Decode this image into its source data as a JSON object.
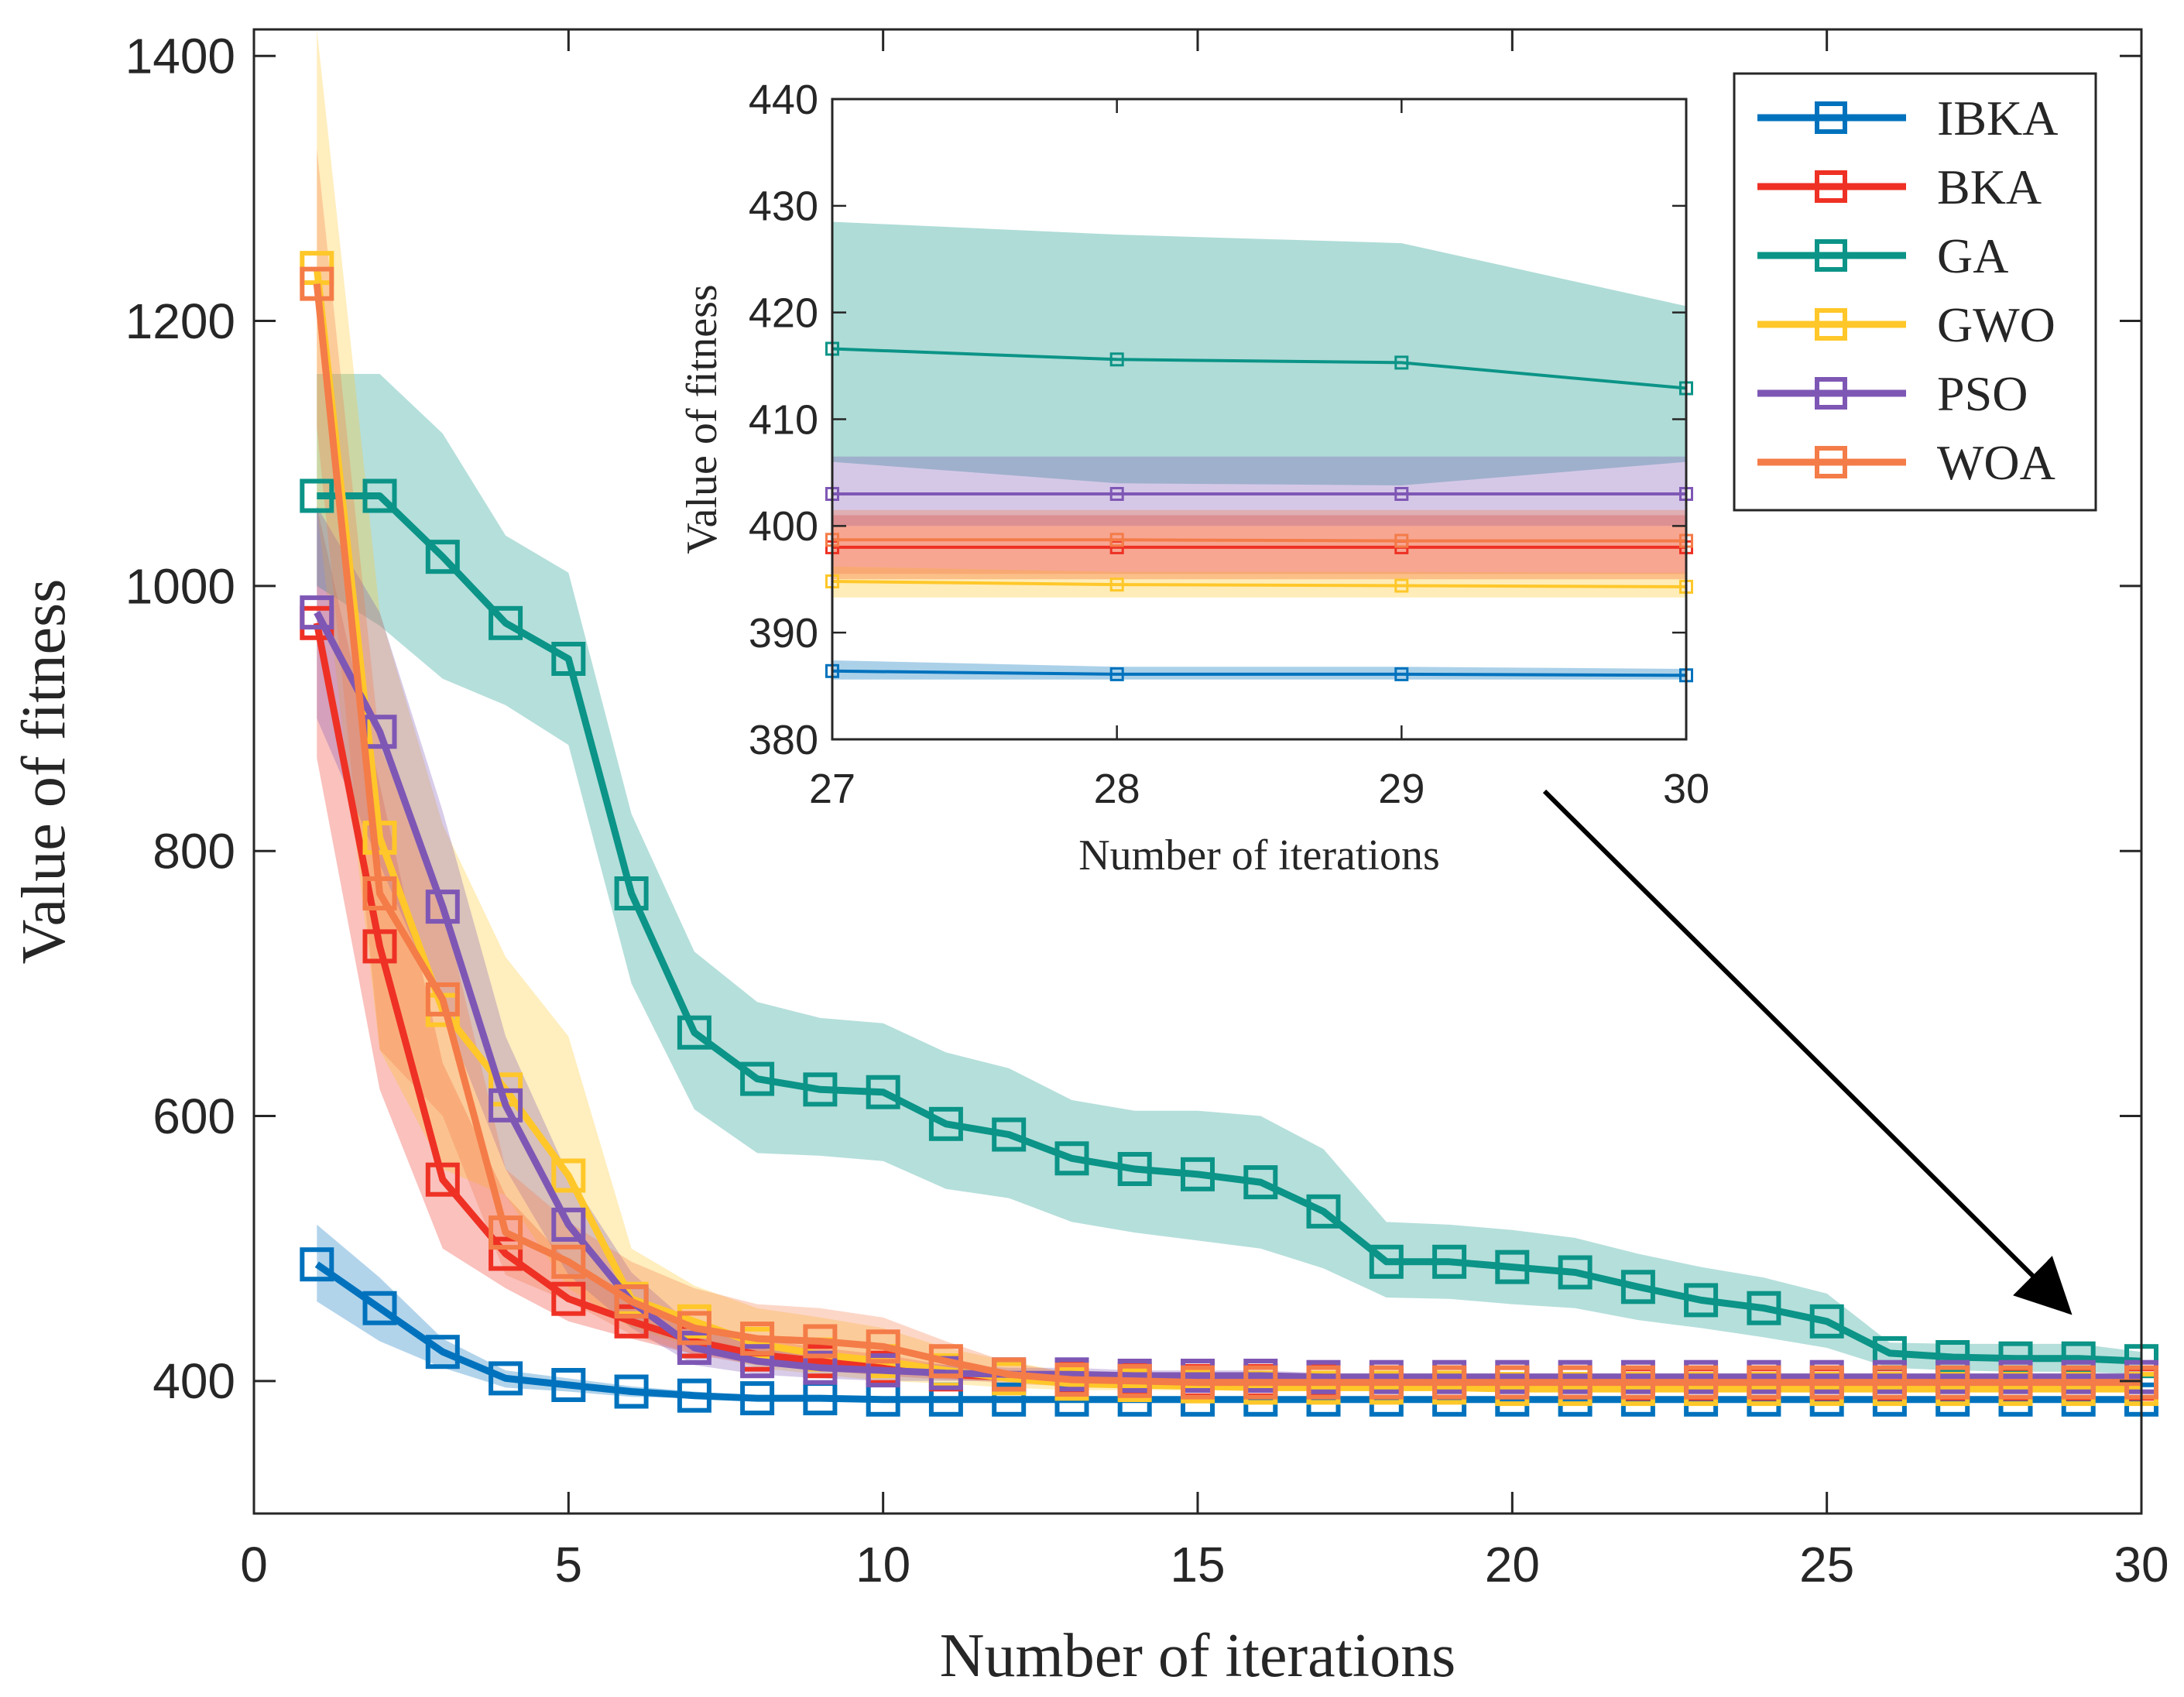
{
  "chart_data": {
    "type": "line",
    "xlabel": "Number of iterations",
    "ylabel": "Value of fitness",
    "xlim": [
      0,
      30
    ],
    "ylim": [
      300,
      1420
    ],
    "xticks": [
      0,
      5,
      10,
      15,
      20,
      25,
      30
    ],
    "yticks": [
      400,
      600,
      800,
      1000,
      1200,
      1400
    ],
    "legend_position": "top-right",
    "x": [
      1,
      2,
      3,
      4,
      5,
      6,
      7,
      8,
      9,
      10,
      11,
      12,
      13,
      14,
      15,
      16,
      17,
      18,
      19,
      20,
      21,
      22,
      23,
      24,
      25,
      26,
      27,
      28,
      29,
      30
    ],
    "series": [
      {
        "name": "IBKA",
        "color": "#0072BD",
        "values": [
          488,
          455,
          422,
          402,
          397,
          392,
          389,
          387,
          387,
          386,
          386,
          386,
          386,
          386,
          386,
          386,
          386,
          386,
          386,
          386,
          386,
          386,
          386,
          386,
          386,
          386,
          386,
          386,
          386,
          386
        ],
        "lower": [
          460,
          430,
          410,
          395,
          392,
          388,
          387,
          386,
          386,
          386,
          386,
          386,
          386,
          386,
          386,
          386,
          386,
          386,
          386,
          386,
          386,
          386,
          386,
          386,
          386,
          386,
          386,
          386,
          386,
          386
        ],
        "upper": [
          518,
          478,
          432,
          408,
          402,
          396,
          392,
          389,
          388,
          387,
          387,
          387,
          387,
          387,
          387,
          387,
          387,
          387,
          387,
          387,
          387,
          387,
          387,
          387,
          387,
          387,
          387,
          387,
          387,
          387
        ]
      },
      {
        "name": "BKA",
        "color": "#EE3124",
        "values": [
          972,
          728,
          552,
          496,
          462,
          445,
          430,
          420,
          415,
          410,
          405,
          403,
          402,
          401,
          400,
          400,
          400,
          399,
          399,
          399,
          399,
          398,
          398,
          398,
          398,
          398,
          398,
          398,
          398,
          398
        ],
        "lower": [
          870,
          620,
          500,
          470,
          445,
          432,
          420,
          412,
          408,
          404,
          401,
          400,
          399,
          398,
          398,
          397,
          397,
          397,
          397,
          396,
          396,
          396,
          396,
          396,
          396,
          396,
          396,
          396,
          396,
          396
        ],
        "upper": [
          1060,
          850,
          640,
          540,
          490,
          465,
          445,
          432,
          425,
          420,
          412,
          408,
          405,
          404,
          403,
          403,
          402,
          402,
          401,
          401,
          401,
          401,
          401,
          401,
          401,
          401,
          401,
          401,
          401,
          401
        ]
      },
      {
        "name": "GA",
        "color": "#0B9487",
        "values": [
          1068,
          1068,
          1022,
          972,
          945,
          768,
          663,
          628,
          620,
          618,
          594,
          586,
          568,
          560,
          556,
          550,
          528,
          490,
          490,
          486,
          482,
          471,
          461,
          455,
          445,
          421,
          418,
          417,
          417,
          415
        ],
        "lower": [
          1000,
          970,
          930,
          910,
          880,
          700,
          605,
          572,
          570,
          566,
          545,
          538,
          520,
          512,
          506,
          500,
          485,
          463,
          462,
          458,
          455,
          446,
          440,
          433,
          425,
          410,
          408,
          407,
          407,
          405
        ],
        "upper": [
          1160,
          1160,
          1115,
          1038,
          1010,
          828,
          724,
          686,
          674,
          670,
          648,
          636,
          612,
          604,
          604,
          600,
          575,
          520,
          518,
          514,
          508,
          496,
          486,
          478,
          466,
          429,
          428,
          428,
          428,
          422
        ]
      },
      {
        "name": "GWO",
        "color": "#FFC729",
        "values": [
          1240,
          810,
          680,
          620,
          555,
          462,
          445,
          428,
          420,
          415,
          408,
          402,
          398,
          397,
          396,
          395,
          395,
          395,
          395,
          394,
          394,
          394,
          394,
          394,
          394,
          394,
          394,
          394,
          394,
          394
        ],
        "lower": [
          1060,
          650,
          560,
          540,
          470,
          440,
          425,
          410,
          405,
          400,
          398,
          395,
          393,
          393,
          393,
          393,
          393,
          393,
          393,
          392,
          392,
          392,
          392,
          392,
          392,
          392,
          392,
          392,
          392,
          392
        ],
        "upper": [
          1420,
          980,
          820,
          720,
          660,
          500,
          472,
          455,
          448,
          440,
          425,
          415,
          406,
          402,
          400,
          399,
          399,
          399,
          398,
          398,
          397,
          397,
          397,
          397,
          397,
          397,
          397,
          397,
          397,
          397
        ]
      },
      {
        "name": "PSO",
        "color": "#7E57B5",
        "values": [
          980,
          890,
          758,
          608,
          518,
          460,
          425,
          415,
          410,
          408,
          406,
          405,
          405,
          404,
          404,
          404,
          403,
          403,
          403,
          403,
          403,
          403,
          403,
          403,
          403,
          403,
          403,
          403,
          403,
          403
        ],
        "lower": [
          900,
          790,
          680,
          560,
          480,
          440,
          412,
          405,
          402,
          400,
          400,
          400,
          400,
          400,
          400,
          400,
          400,
          400,
          400,
          400,
          400,
          400,
          400,
          400,
          400,
          400,
          400,
          400,
          400,
          400
        ],
        "upper": [
          1060,
          980,
          830,
          660,
          555,
          482,
          440,
          428,
          420,
          416,
          412,
          410,
          410,
          408,
          408,
          408,
          406,
          406,
          406,
          406,
          406,
          406,
          406,
          406,
          406,
          406,
          406,
          406,
          406,
          406
        ]
      },
      {
        "name": "WOA",
        "color": "#F47C48",
        "values": [
          1228,
          768,
          688,
          512,
          490,
          460,
          440,
          432,
          430,
          426,
          415,
          405,
          401,
          400,
          399,
          399,
          399,
          399,
          399,
          399,
          399,
          399,
          399,
          399,
          399,
          399,
          399,
          399,
          399,
          399
        ],
        "lower": [
          1120,
          650,
          600,
          480,
          460,
          435,
          420,
          415,
          414,
          410,
          402,
          398,
          396,
          396,
          395,
          395,
          395,
          395,
          395,
          395,
          395,
          395,
          395,
          395,
          395,
          395,
          395,
          395,
          395,
          395
        ],
        "upper": [
          1330,
          880,
          760,
          560,
          520,
          490,
          470,
          458,
          455,
          448,
          430,
          414,
          406,
          404,
          403,
          403,
          403,
          403,
          403,
          403,
          403,
          403,
          403,
          403,
          403,
          403,
          403,
          403,
          403,
          403
        ]
      }
    ],
    "inset": {
      "xlabel": "Number of iterations",
      "ylabel": "Value of fitness",
      "xlim": [
        27,
        30
      ],
      "ylim": [
        380,
        440
      ],
      "xticks": [
        27,
        28,
        29,
        30
      ],
      "yticks": [
        380,
        390,
        400,
        410,
        420,
        430,
        440
      ],
      "x": [
        27,
        28,
        29,
        30
      ],
      "series": [
        {
          "name": "IBKA",
          "values": [
            386.4,
            386.1,
            386.1,
            386.0
          ],
          "lower": [
            385.6,
            385.6,
            385.6,
            385.6
          ],
          "upper": [
            387.4,
            386.8,
            386.8,
            386.6
          ]
        },
        {
          "name": "BKA",
          "values": [
            398.0,
            398.0,
            398.0,
            398.0
          ],
          "lower": [
            395.0,
            395.0,
            395.0,
            395.0
          ],
          "upper": [
            401.0,
            401.0,
            401.0,
            401.0
          ]
        },
        {
          "name": "GA",
          "values": [
            416.6,
            415.6,
            415.3,
            412.9
          ],
          "lower": [
            406.0,
            404.0,
            403.8,
            406.0
          ],
          "upper": [
            428.5,
            427.3,
            426.5,
            420.6
          ]
        },
        {
          "name": "GWO",
          "values": [
            394.8,
            394.5,
            394.4,
            394.3
          ],
          "lower": [
            393.3,
            393.3,
            393.3,
            393.3
          ],
          "upper": [
            396.2,
            395.7,
            395.7,
            395.6
          ]
        },
        {
          "name": "PSO",
          "values": [
            403.0,
            403.0,
            403.0,
            403.0
          ],
          "lower": [
            400.0,
            400.0,
            400.0,
            400.0
          ],
          "upper": [
            406.5,
            406.5,
            406.5,
            406.5
          ]
        },
        {
          "name": "WOA",
          "values": [
            398.7,
            398.7,
            398.6,
            398.6
          ],
          "lower": [
            395.5,
            395.5,
            395.5,
            395.5
          ],
          "upper": [
            401.5,
            401.5,
            401.5,
            401.5
          ]
        }
      ]
    }
  }
}
